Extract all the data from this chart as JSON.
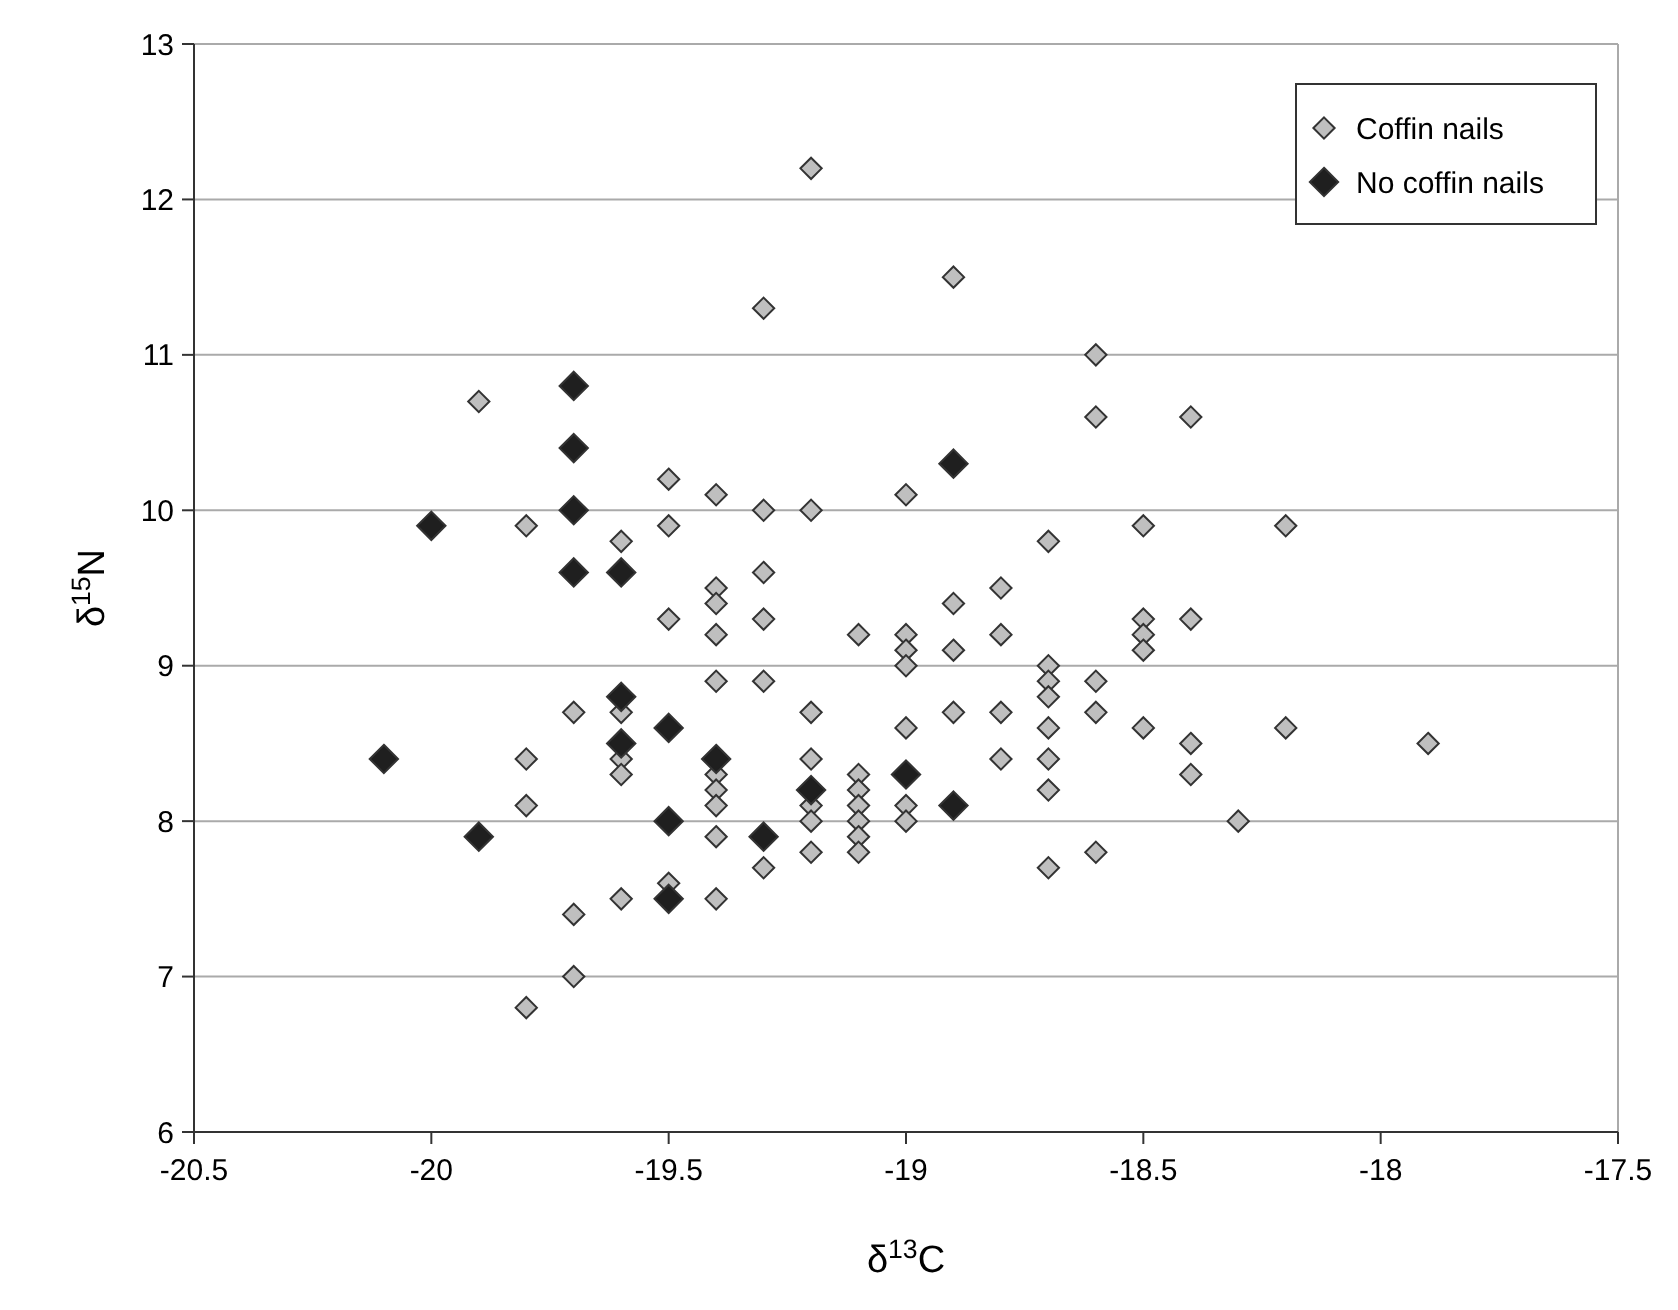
{
  "chart_data": {
    "type": "scatter",
    "xlabel": "δ$^{13}$C",
    "ylabel": "δ$^{15}$N",
    "xlim": [
      -20.5,
      -17.5
    ],
    "xticks": [
      -20.5,
      -20,
      -19.5,
      -19,
      -18.5,
      -18,
      -17.5
    ],
    "ylim": [
      6,
      13
    ],
    "yticks": [
      6,
      7,
      8,
      9,
      10,
      11,
      12,
      13
    ],
    "grid": "y",
    "legend": "top right",
    "marker": "diamond",
    "series": [
      {
        "name": "Coffin nails",
        "color": "#bfbfbf",
        "x": [
          -19.9,
          -19.8,
          -19.8,
          -19.8,
          -19.8,
          -19.7,
          -19.7,
          -19.7,
          -19.6,
          -19.6,
          -19.6,
          -19.6,
          -19.6,
          -19.5,
          -19.5,
          -19.5,
          -19.5,
          -19.4,
          -19.4,
          -19.4,
          -19.4,
          -19.4,
          -19.4,
          -19.4,
          -19.4,
          -19.4,
          -19.4,
          -19.3,
          -19.3,
          -19.3,
          -19.3,
          -19.3,
          -19.3,
          -19.2,
          -19.2,
          -19.2,
          -19.2,
          -19.2,
          -19.2,
          -19.2,
          -19.1,
          -19.1,
          -19.1,
          -19.1,
          -19.1,
          -19.1,
          -19.1,
          -19.0,
          -19.0,
          -19.0,
          -19.0,
          -19.0,
          -19.0,
          -19.0,
          -18.9,
          -18.9,
          -18.9,
          -18.9,
          -18.8,
          -18.8,
          -18.8,
          -18.8,
          -18.7,
          -18.7,
          -18.7,
          -18.7,
          -18.7,
          -18.7,
          -18.7,
          -18.7,
          -18.6,
          -18.6,
          -18.6,
          -18.6,
          -18.6,
          -18.5,
          -18.5,
          -18.5,
          -18.5,
          -18.5,
          -18.4,
          -18.4,
          -18.4,
          -18.4,
          -18.3,
          -18.2,
          -18.2,
          -17.9
        ],
        "values": [
          10.7,
          9.9,
          8.4,
          8.1,
          6.8,
          8.7,
          7.4,
          7.0,
          9.8,
          8.7,
          8.4,
          8.3,
          7.5,
          10.2,
          9.9,
          9.3,
          7.6,
          10.1,
          9.5,
          9.4,
          9.2,
          8.9,
          8.3,
          8.2,
          8.1,
          7.9,
          7.5,
          11.3,
          10.0,
          9.6,
          9.3,
          8.9,
          7.7,
          12.2,
          10.0,
          8.7,
          8.4,
          8.1,
          8.0,
          7.8,
          9.2,
          8.3,
          8.2,
          8.1,
          8.0,
          7.9,
          7.8,
          10.1,
          9.2,
          9.1,
          9.0,
          8.6,
          8.1,
          8.0,
          11.5,
          9.4,
          9.1,
          8.7,
          9.5,
          9.2,
          8.7,
          8.4,
          9.8,
          9.0,
          8.9,
          8.8,
          8.6,
          8.4,
          8.2,
          7.7,
          11.0,
          10.6,
          8.9,
          8.7,
          7.8,
          9.9,
          9.3,
          9.2,
          9.1,
          8.6,
          10.6,
          9.3,
          8.5,
          8.3,
          8.0,
          9.9,
          8.6,
          8.5
        ]
      },
      {
        "name": "No coffin nails",
        "color": "#1f1f1f",
        "x": [
          -20.1,
          -20.0,
          -19.9,
          -19.7,
          -19.7,
          -19.7,
          -19.7,
          -19.6,
          -19.6,
          -19.6,
          -19.5,
          -19.5,
          -19.5,
          -19.4,
          -19.3,
          -19.2,
          -19.0,
          -18.9,
          -18.9
        ],
        "values": [
          8.4,
          9.9,
          7.9,
          10.8,
          10.4,
          10.0,
          9.6,
          9.6,
          8.8,
          8.5,
          8.6,
          8.0,
          7.5,
          8.4,
          7.9,
          8.2,
          8.3,
          10.3,
          8.1
        ]
      }
    ]
  }
}
